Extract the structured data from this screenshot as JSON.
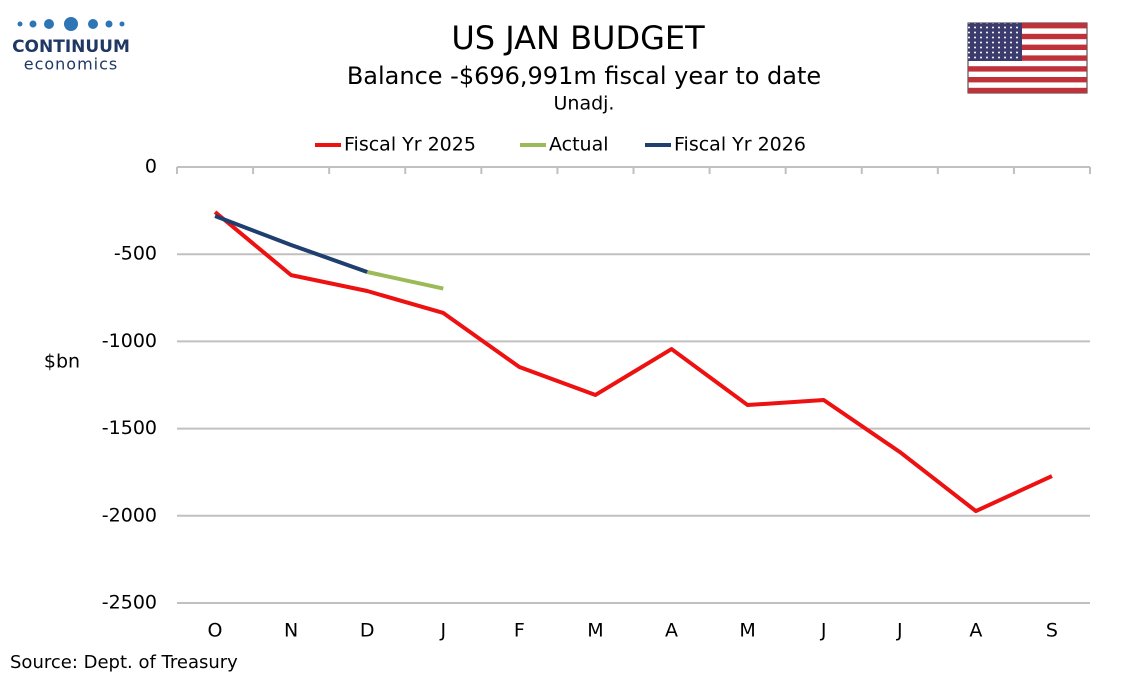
{
  "logo": {
    "name": "CONTINUUM",
    "tagline": "economics"
  },
  "source": "Source: Dept. of Treasury",
  "chart_data": {
    "type": "line",
    "title": "US JAN BUDGET",
    "subtitle": "Balance  -$696,991m  fiscal year to date",
    "note": "Unadj.",
    "y_label": "$bn",
    "categories": [
      "O",
      "N",
      "D",
      "J",
      "F",
      "M",
      "A",
      "M",
      "J",
      "J",
      "A",
      "S"
    ],
    "series": [
      {
        "name": "Fiscal Yr 2025",
        "color": "#ee1111",
        "values": [
          -258,
          -620,
          -711,
          -837,
          -1147,
          -1307,
          -1044,
          -1365,
          -1336,
          -1634,
          -1973,
          -1772
        ]
      },
      {
        "name": "Actual",
        "color": "#9bbb59",
        "values": [
          null,
          null,
          -602,
          -697,
          null,
          null,
          null,
          null,
          null,
          null,
          null,
          null
        ]
      },
      {
        "name": "Fiscal Yr 2026",
        "color": "#1f3f6e",
        "values": [
          -281,
          -447,
          -602,
          null,
          null,
          null,
          null,
          null,
          null,
          null,
          null,
          null
        ]
      }
    ],
    "ylim": [
      -2500,
      0
    ],
    "yticks": [
      0,
      -500,
      -1000,
      -1500,
      -2000,
      -2500
    ],
    "grid": true
  }
}
